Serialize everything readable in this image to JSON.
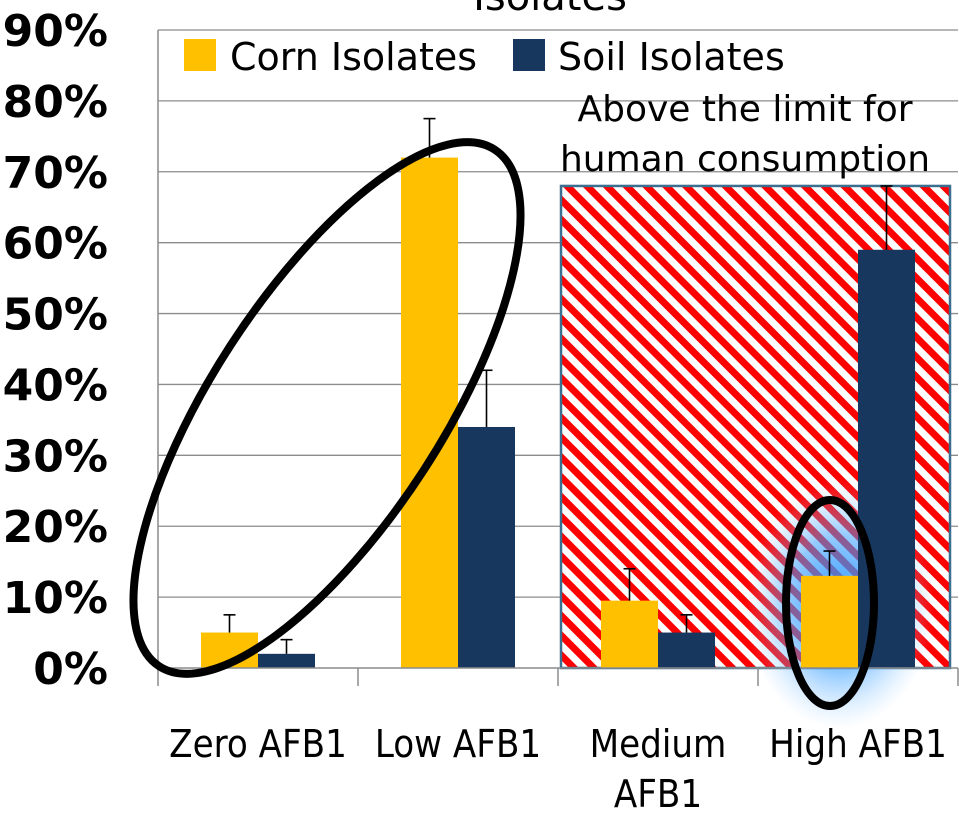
{
  "chart_data": {
    "type": "bar",
    "title": "Isolates",
    "categories": [
      "Zero AFB1",
      "Low AFB1",
      "Medium AFB1",
      "High AFB1"
    ],
    "series": [
      {
        "name": "Corn Isolates",
        "values": [
          5,
          72,
          9.5,
          13
        ],
        "errors": [
          2.5,
          5.5,
          4.5,
          3.5
        ],
        "color": "#ffc000"
      },
      {
        "name": "Soil Isolates",
        "values": [
          2,
          34,
          5,
          59
        ],
        "errors": [
          2,
          8,
          2.5,
          9
        ],
        "color": "#17375e"
      }
    ],
    "ylim": [
      0,
      90
    ],
    "yticks": [
      "0%",
      "10%",
      "20%",
      "30%",
      "40%",
      "50%",
      "60%",
      "70%",
      "80%",
      "90%"
    ],
    "grid": true,
    "legend": "top",
    "annotation": {
      "lines": [
        "Above the limit for",
        "human consumption"
      ],
      "region_categories": [
        "Medium AFB1",
        "High AFB1"
      ],
      "region_ylim": [
        0,
        68
      ],
      "color": "#ff0000"
    },
    "highlights": [
      "Zero AFB1 / Low AFB1 (Corn Isolates)",
      "High AFB1 (Corn Isolates)"
    ]
  }
}
